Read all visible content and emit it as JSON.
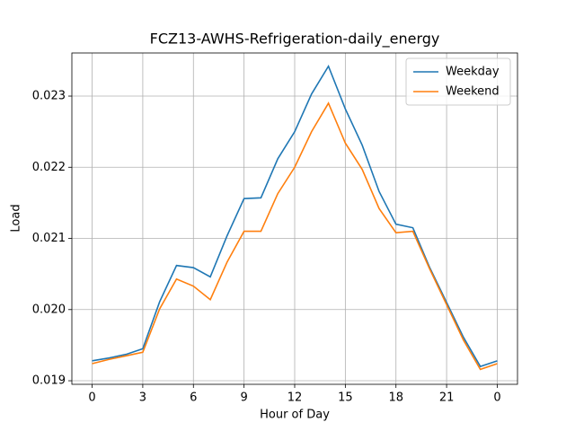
{
  "chart_data": {
    "type": "line",
    "title": "FCZ13-AWHS-Refrigeration-daily_energy",
    "x_label": "Hour of Day",
    "y_label": "Load",
    "x": [
      0,
      1,
      2,
      3,
      4,
      5,
      6,
      7,
      8,
      9,
      10,
      11,
      12,
      13,
      14,
      15,
      16,
      17,
      18,
      19,
      20,
      21,
      22,
      23,
      24
    ],
    "series": [
      {
        "name": "Weekday",
        "color": "#1f77b4",
        "values": [
          0.01928,
          0.01932,
          0.01937,
          0.01945,
          0.02011,
          0.02062,
          0.02059,
          0.02046,
          0.02104,
          0.02156,
          0.02157,
          0.02212,
          0.0225,
          0.02303,
          0.02342,
          0.02282,
          0.02231,
          0.02166,
          0.0212,
          0.02115,
          0.02059,
          0.0201,
          0.01961,
          0.0192,
          0.01928
        ]
      },
      {
        "name": "Weekend",
        "color": "#ff7f0e",
        "values": [
          0.01924,
          0.0193,
          0.01935,
          0.0194,
          0.02001,
          0.02043,
          0.02033,
          0.02014,
          0.02067,
          0.0211,
          0.0211,
          0.02163,
          0.022,
          0.0225,
          0.0229,
          0.02234,
          0.02197,
          0.02142,
          0.02108,
          0.0211,
          0.02057,
          0.02007,
          0.01957,
          0.01916,
          0.01924
        ]
      }
    ],
    "xlim": [
      -1.2,
      25.2
    ],
    "xticks": [
      0,
      3,
      6,
      9,
      12,
      15,
      18,
      21,
      {
        "value": 24,
        "label": "0"
      }
    ],
    "ylim": [
      0.01895,
      0.023606
    ],
    "yticks": [
      0.019,
      {
        "value": 0.02,
        "label": "0.020"
      },
      0.021,
      0.022,
      0.023
    ],
    "grid": true,
    "legend": "upper-right"
  }
}
